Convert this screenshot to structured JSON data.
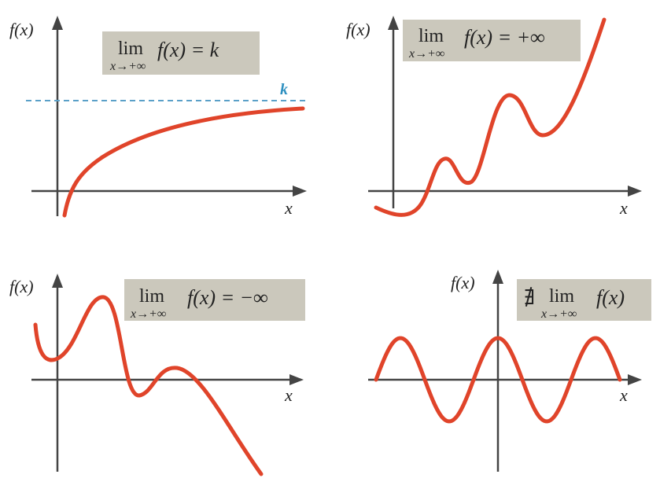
{
  "panels": [
    {
      "y_label": "f(x)",
      "x_label": "x",
      "formula": {
        "lim": "lim",
        "subscript": "x→+∞",
        "expression": "f(x) = k"
      },
      "annotation": "k"
    },
    {
      "y_label": "f(x)",
      "x_label": "x",
      "formula": {
        "lim": "lim",
        "subscript": "x→+∞",
        "expression": "f(x) = +∞"
      }
    },
    {
      "y_label": "f(x)",
      "x_label": "x",
      "formula": {
        "lim": "lim",
        "subscript": "x→+∞",
        "expression": "f(x) = −∞"
      }
    },
    {
      "y_label": "f(x)",
      "x_label": "x",
      "formula": {
        "prefix": "∄",
        "lim": "lim",
        "subscript": "x→+∞",
        "expression": "f(x)"
      }
    }
  ]
}
